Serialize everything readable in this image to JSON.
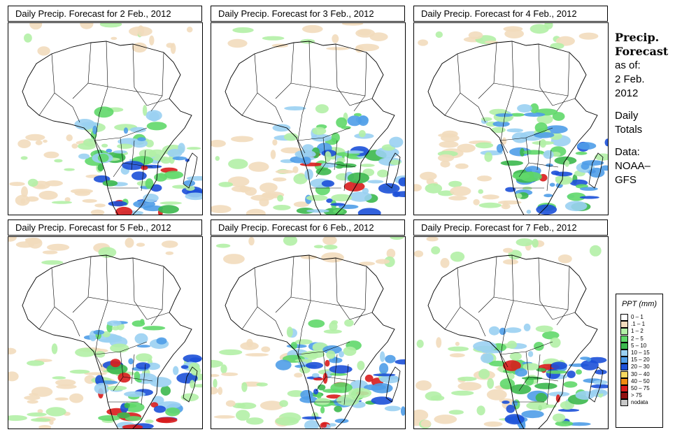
{
  "panels": [
    {
      "title": "Daily Precip. Forecast for  2 Feb., 2012"
    },
    {
      "title": "Daily Precip. Forecast for  3 Feb., 2012"
    },
    {
      "title": "Daily Precip. Forecast for  4 Feb., 2012"
    },
    {
      "title": "Daily Precip. Forecast for  5 Feb., 2012"
    },
    {
      "title": "Daily Precip. Forecast for  6 Feb., 2012"
    },
    {
      "title": "Daily Precip. Forecast for  7 Feb., 2012"
    }
  ],
  "side": {
    "title_line1": "Precip.",
    "title_line2": "Forecast",
    "asof": "as of:",
    "date_line1": "2 Feb.",
    "date_line2": "2012",
    "daily_line1": "Daily",
    "daily_line2": "Totals",
    "data_line1": "Data:",
    "data_line2": "NOAA–",
    "data_line3": "GFS"
  },
  "legend": {
    "title": "PPT (mm)",
    "items": [
      {
        "label": "0 – 1",
        "color": "#ffffff"
      },
      {
        "label": ".1 – 1",
        "color": "#f2dcbd"
      },
      {
        "label": "1 – 2",
        "color": "#b2f0a6"
      },
      {
        "label": "2 – 5",
        "color": "#60d86a"
      },
      {
        "label": "5 – 10",
        "color": "#3cb84e"
      },
      {
        "label": "10 – 15",
        "color": "#9ad0f2"
      },
      {
        "label": "15 – 20",
        "color": "#4f9de8"
      },
      {
        "label": "20 – 30",
        "color": "#1c50d8"
      },
      {
        "label": "30 – 40",
        "color": "#f6d860"
      },
      {
        "label": "40 – 50",
        "color": "#f08a10"
      },
      {
        "label": "50 – 75",
        "color": "#d81c1c"
      },
      {
        "label": "> 75",
        "color": "#901010"
      },
      {
        "label": "nodata",
        "color": "#c8c8c8"
      }
    ]
  }
}
